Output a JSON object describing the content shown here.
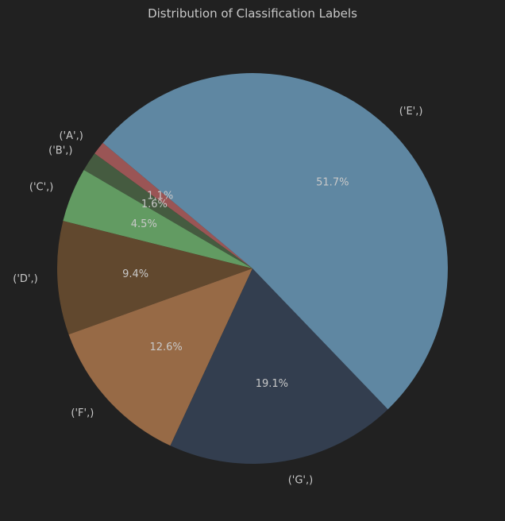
{
  "chart_data": {
    "type": "pie",
    "title": "Distribution of Classification Labels",
    "start_angle_deg": 140,
    "direction": "counterclockwise",
    "slices": [
      {
        "label": "('A',)",
        "value": 1.1,
        "pct_label": "1.1%",
        "color": "#9a5555"
      },
      {
        "label": "('B',)",
        "value": 1.6,
        "pct_label": "1.6%",
        "color": "#455b40"
      },
      {
        "label": "('C',)",
        "value": 4.5,
        "pct_label": "4.5%",
        "color": "#629b62"
      },
      {
        "label": "('D',)",
        "value": 9.4,
        "pct_label": "9.4%",
        "color": "#61482e"
      },
      {
        "label": "('F',)",
        "value": 12.6,
        "pct_label": "12.6%",
        "color": "#976a46"
      },
      {
        "label": "('G',)",
        "value": 19.1,
        "pct_label": "19.1%",
        "color": "#333e4f"
      },
      {
        "label": "('E',)",
        "value": 51.7,
        "pct_label": "51.7%",
        "color": "#5f87a2"
      }
    ]
  }
}
